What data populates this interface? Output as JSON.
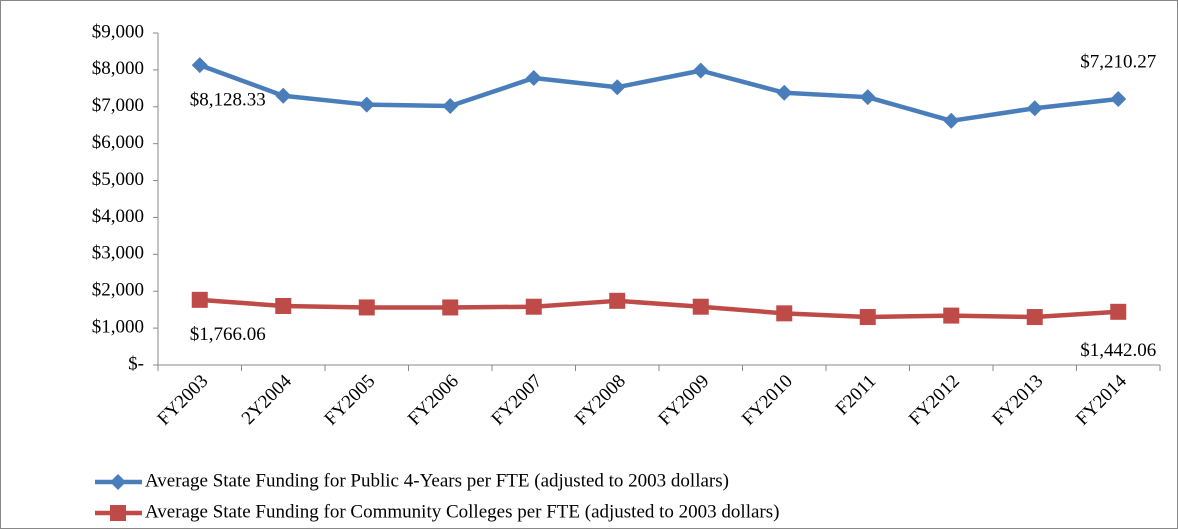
{
  "chart_data": {
    "type": "line",
    "categories": [
      "FY2003",
      "2Y2004",
      "FY2005",
      "FY2006",
      "FY2007",
      "FY2008",
      "FY2009",
      "FY2010",
      "F2011",
      "FY2012",
      "FY2013",
      "FY2014"
    ],
    "series": [
      {
        "name": "Average State Funding for Public 4-Years per FTE (adjusted to 2003 dollars)",
        "color": "#4a7ebb",
        "marker": "diamond",
        "values": [
          8128.33,
          7300,
          7060,
          7020,
          7780,
          7530,
          7980,
          7380,
          7260,
          6620,
          6960,
          7210.27
        ],
        "value_labels": [
          "$8,128.33",
          null,
          null,
          null,
          null,
          null,
          null,
          null,
          null,
          null,
          null,
          "$7,210.27"
        ]
      },
      {
        "name": "Average State Funding for Community Colleges per FTE (adjusted to 2003 dollars)",
        "color": "#be4b48",
        "marker": "square",
        "values": [
          1766.06,
          1600,
          1560,
          1560,
          1580,
          1740,
          1580,
          1400,
          1300,
          1340,
          1300,
          1442.06
        ],
        "value_labels": [
          "$1,766.06",
          null,
          null,
          null,
          null,
          null,
          null,
          null,
          null,
          null,
          null,
          "$1,442.06"
        ]
      }
    ],
    "ylim": [
      0,
      9000
    ],
    "yticks": [
      {
        "value": 0,
        "label": "$-"
      },
      {
        "value": 1000,
        "label": "$1,000"
      },
      {
        "value": 2000,
        "label": "$2,000"
      },
      {
        "value": 3000,
        "label": "$3,000"
      },
      {
        "value": 4000,
        "label": "$4,000"
      },
      {
        "value": 5000,
        "label": "$5,000"
      },
      {
        "value": 6000,
        "label": "$6,000"
      },
      {
        "value": 7000,
        "label": "$7,000"
      },
      {
        "value": 8000,
        "label": "$8,000"
      },
      {
        "value": 9000,
        "label": "$9,000"
      }
    ],
    "grid": false,
    "legend": "bottom"
  }
}
